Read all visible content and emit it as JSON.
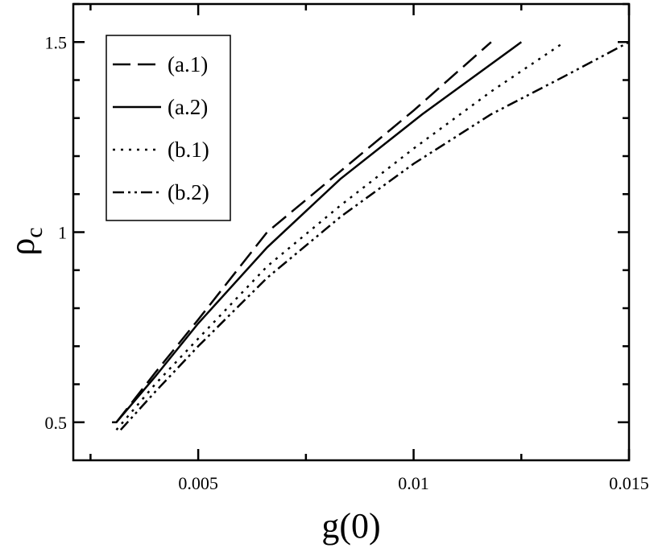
{
  "chart_data": {
    "type": "line",
    "title": "",
    "xlabel": "g(0)",
    "ylabel": "ρ",
    "ylabel_subscript": "c",
    "xlim": [
      0.0021,
      0.015
    ],
    "ylim": [
      0.4,
      1.6
    ],
    "xticks": [
      0.005,
      0.01,
      0.015
    ],
    "xtick_labels": [
      "0.005",
      "0.01",
      "0.015"
    ],
    "yticks": [
      0.5,
      1,
      1.5
    ],
    "ytick_labels": [
      "0.5",
      "1",
      "1.5"
    ],
    "grid": false,
    "legend_position": "top-left",
    "series": [
      {
        "name": "(a.1)",
        "style": "dashed",
        "x": [
          0.0031,
          0.004,
          0.005,
          0.0066,
          0.0083,
          0.01,
          0.0118
        ],
        "y": [
          0.5,
          0.63,
          0.77,
          1.0,
          1.16,
          1.32,
          1.5
        ]
      },
      {
        "name": "(a.2)",
        "style": "solid",
        "x": [
          0.003,
          0.0031,
          0.004,
          0.005,
          0.0066,
          0.0083,
          0.0102,
          0.0125
        ],
        "y": [
          0.5,
          0.5,
          0.62,
          0.76,
          0.96,
          1.14,
          1.31,
          1.5
        ]
      },
      {
        "name": "(b.1)",
        "style": "dotted",
        "x": [
          0.0031,
          0.004,
          0.005,
          0.0066,
          0.0083,
          0.01,
          0.0118,
          0.0135
        ],
        "y": [
          0.48,
          0.6,
          0.72,
          0.91,
          1.07,
          1.22,
          1.37,
          1.5
        ]
      },
      {
        "name": "(b.2)",
        "style": "dash-dot-dot",
        "x": [
          0.0032,
          0.004,
          0.005,
          0.0066,
          0.0083,
          0.01,
          0.0118,
          0.0135,
          0.015
        ],
        "y": [
          0.48,
          0.58,
          0.7,
          0.88,
          1.04,
          1.18,
          1.31,
          1.41,
          1.5
        ]
      }
    ]
  }
}
